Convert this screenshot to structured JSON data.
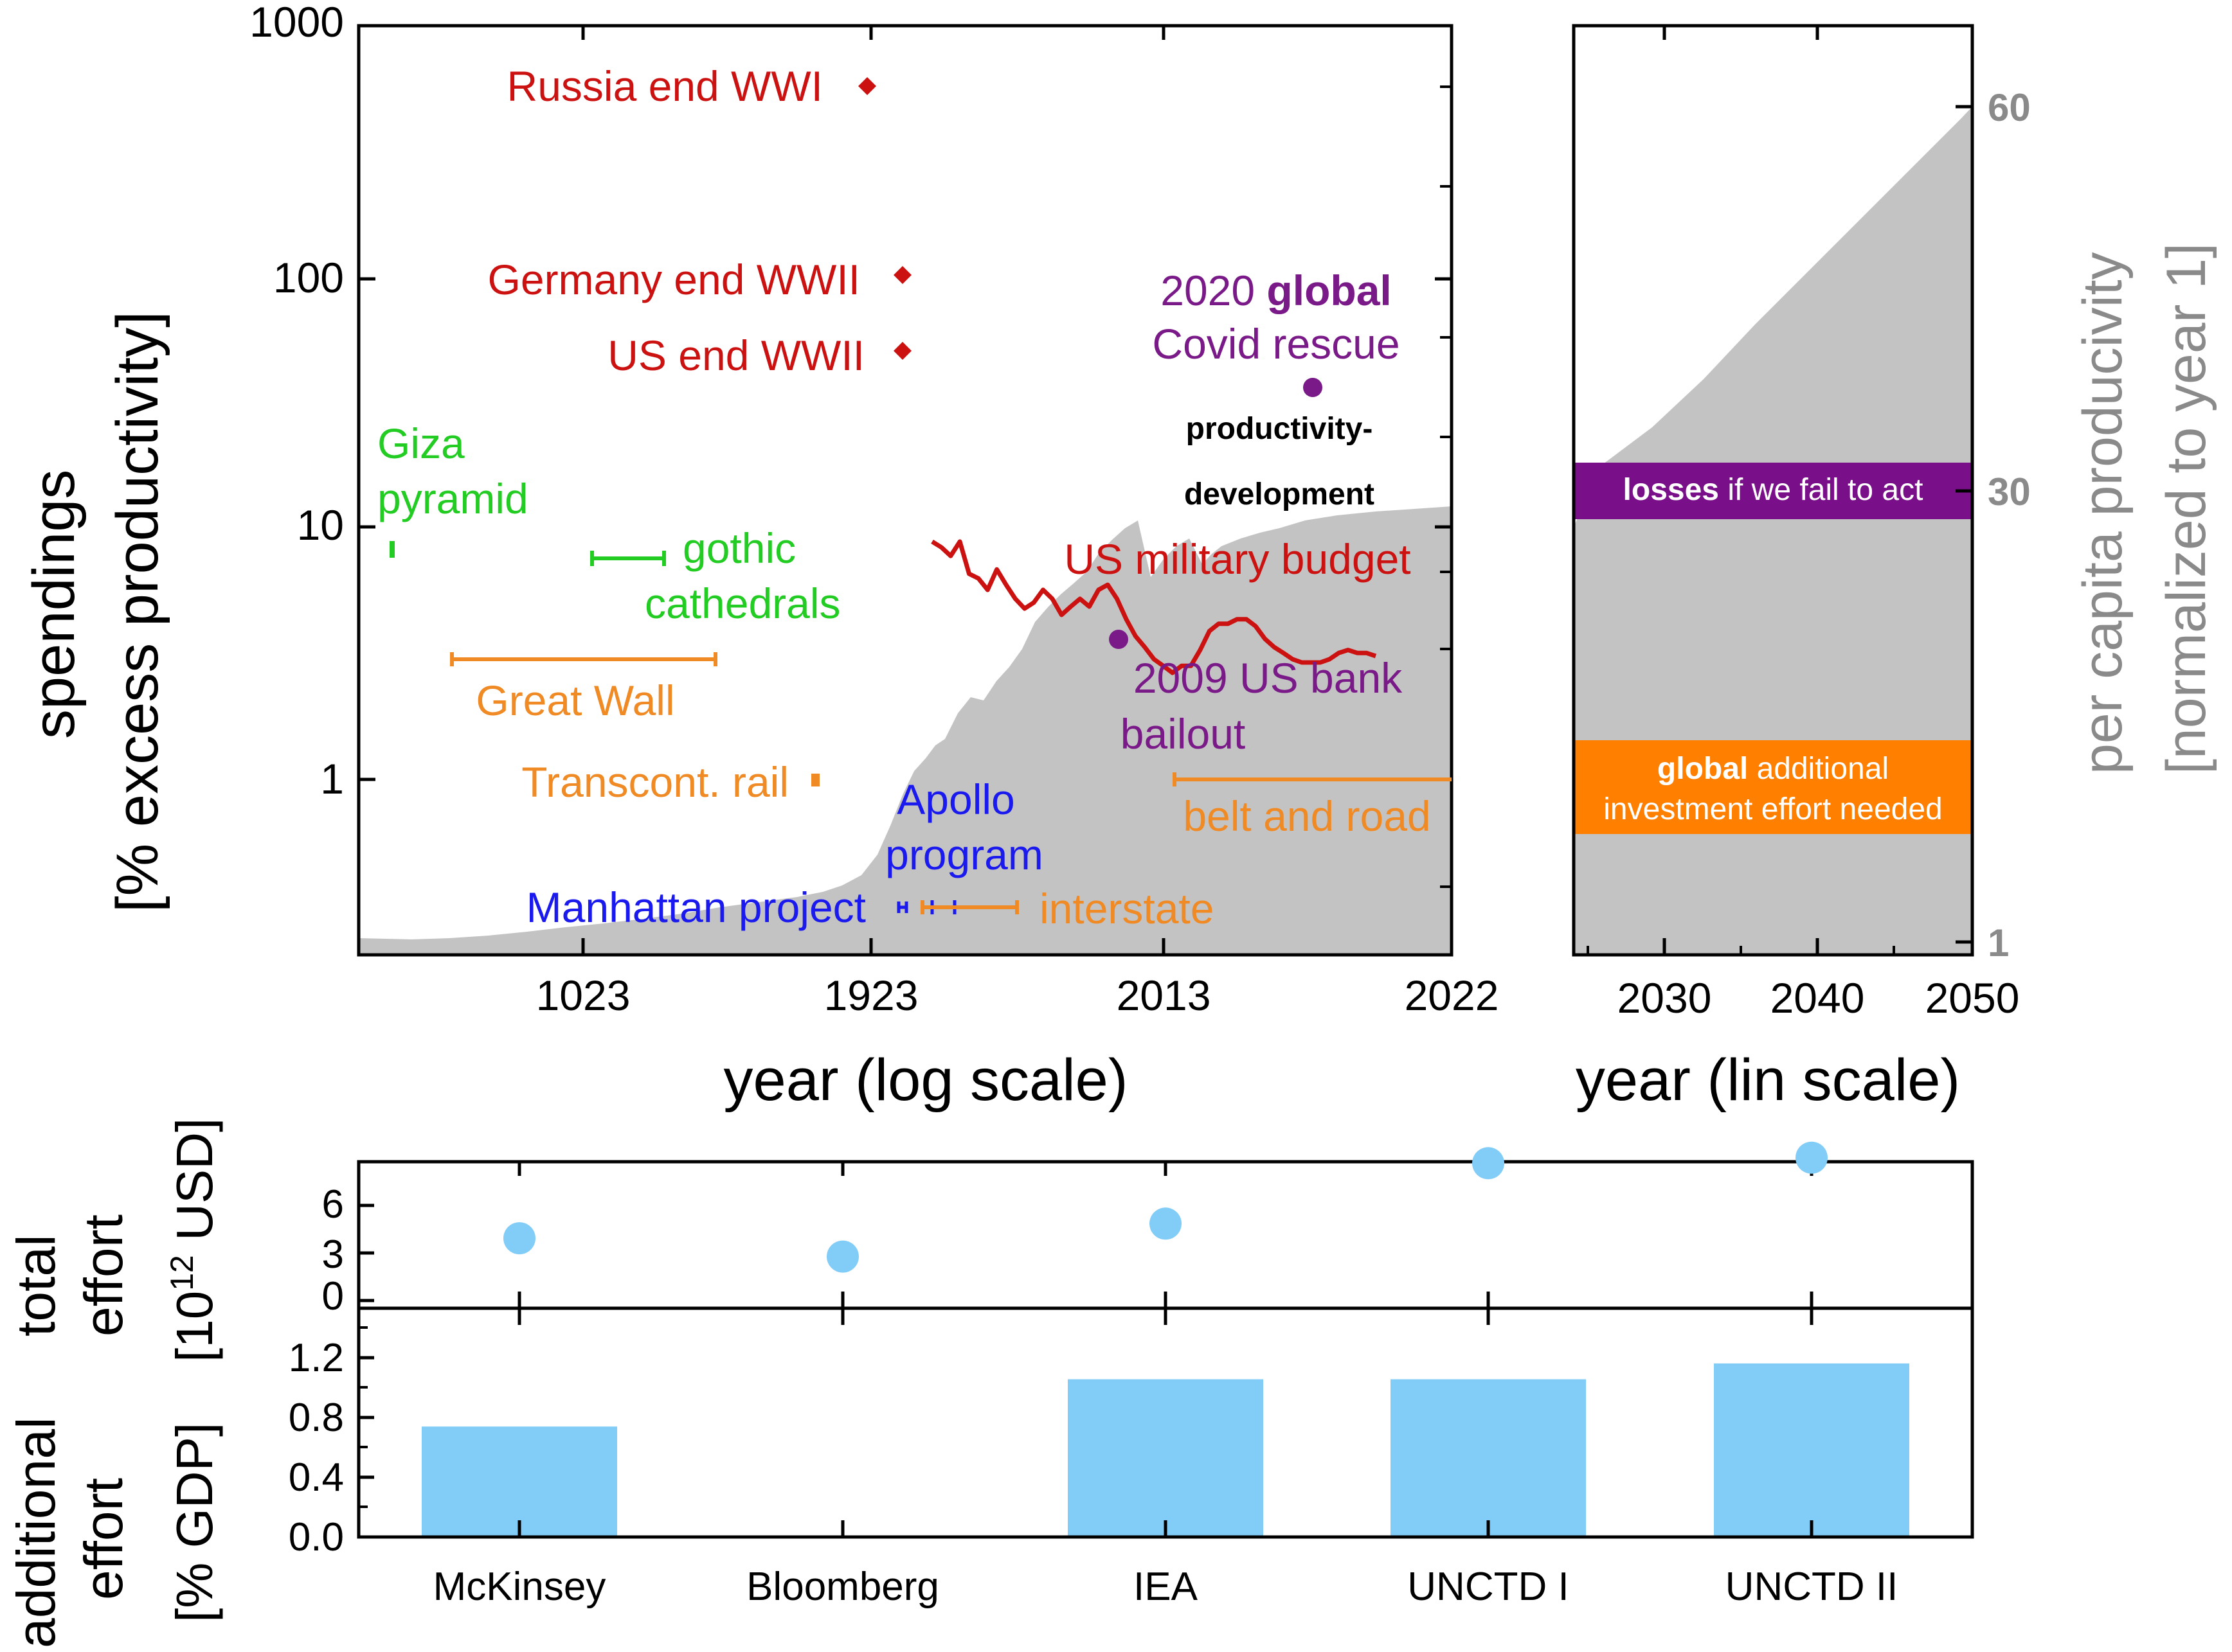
{
  "colors": {
    "war": "#cc1111",
    "green": "#22cc22",
    "orange": "#f08a24",
    "blue": "#1a1aee",
    "purple": "#7a1a88",
    "gray_area": "#c3c3c3",
    "gray_text": "#8a8a8a",
    "sky": "#82cdf7",
    "purple_band": "#7a0f8a",
    "orange_band": "#ff8000"
  },
  "chart_data": [
    {
      "id": "historic",
      "type": "scatter",
      "xlabel": "year (log scale)",
      "ylabel_line1": "spendings",
      "ylabel_line2": "[% excess productivity]",
      "yscale": "log",
      "ylim": [
        0.25,
        1000
      ],
      "yticks": [
        {
          "value": 1000,
          "label": "1000"
        },
        {
          "value": 100,
          "label": "100"
        },
        {
          "value": 10,
          "label": "10"
        },
        {
          "value": 1,
          "label": "1"
        }
      ],
      "xticks": [
        "1023",
        "1923",
        "2013",
        "2022"
      ],
      "points": [
        {
          "label": "Russia end WWI",
          "year": 1917,
          "value": 580,
          "color_key": "war",
          "marker": "diamond"
        },
        {
          "label": "Germany end WWII",
          "year": 1945,
          "value": 100,
          "color_key": "war",
          "marker": "diamond"
        },
        {
          "label": "US end WWII",
          "year": 1945,
          "value": 50,
          "color_key": "war",
          "marker": "diamond"
        },
        {
          "label_part1": "2020 ",
          "label_bold": "global",
          "label_line2": "Covid rescue",
          "year": 2020,
          "value": 36,
          "color_key": "purple",
          "marker": "circle"
        },
        {
          "label_line1": "2009 US bank",
          "label_line2": "bailout",
          "year": 2009,
          "value": 3.6,
          "color_key": "purple",
          "marker": "circle"
        }
      ],
      "ranges": [
        {
          "label_line1": "Giza",
          "label_line2": "pyramid",
          "value": 8.2,
          "color_key": "green"
        },
        {
          "label_line1": "gothic",
          "label_line2": "cathedrals",
          "value": 7.6,
          "color_key": "green"
        },
        {
          "label": "Great Wall",
          "value": 3.0,
          "color_key": "orange"
        },
        {
          "label": "Transcont. rail",
          "value": 1.0,
          "color_key": "orange"
        },
        {
          "label_line1": "Apollo",
          "label_line2": "program",
          "value": 0.33,
          "color_key": "blue"
        },
        {
          "label": "Manhattan project",
          "value": 0.33,
          "color_key": "blue"
        },
        {
          "label": "interstate",
          "value": 0.33,
          "color_key": "orange"
        },
        {
          "label": "belt and road",
          "value": 1.0,
          "color_key": "orange"
        }
      ],
      "military": {
        "label": "US military budget",
        "values": [
          10,
          9.5,
          8.8,
          10,
          7.5,
          7.2,
          6.5,
          7.8,
          6.8,
          6.0,
          5.5,
          5.8,
          6.5,
          6.0,
          5.2,
          5.6,
          6.0,
          5.6,
          6.5,
          6.8,
          6.0,
          5.0,
          4.3,
          3.9,
          3.5,
          3.3,
          3.1,
          3.3,
          3.3,
          3.8,
          4.5,
          4.8,
          4.8,
          5.0,
          5.0,
          4.7,
          4.2,
          3.9,
          3.7,
          3.5,
          3.4,
          3.4,
          3.4,
          3.5,
          3.7,
          3.8,
          3.7,
          3.7,
          3.6
        ]
      },
      "productivity_label_line1": "productivity-",
      "productivity_label_line2": "development"
    },
    {
      "id": "projection",
      "type": "area",
      "xlabel": "year (lin scale)",
      "ylabel_line1": "per capita producivity",
      "ylabel_line2": "[normalized to year 1]",
      "x": [
        2025,
        2030,
        2040,
        2050
      ],
      "xlim": [
        2024,
        2050
      ],
      "xticks": [
        "2030",
        "2040",
        "2050"
      ],
      "right_ticks": [
        "60",
        "30",
        "1"
      ],
      "bands": [
        {
          "bold": "losses",
          "text": " if we fail to act",
          "color_key": "purple_band"
        },
        {
          "bold": "global",
          "text": " additional",
          "line2": "investment effort needed",
          "color_key": "orange_band"
        }
      ]
    },
    {
      "id": "total",
      "type": "scatter",
      "ylabel_line1": "total",
      "ylabel_line2": "effort",
      "ylabel_line3_pre": "[10",
      "ylabel_line3_sup": "12",
      "ylabel_line3_post": " USD]",
      "ylim": [
        0,
        8
      ],
      "yticks": [
        "0",
        "3",
        "6"
      ],
      "categories": [
        "McKinsey",
        "Bloomberg",
        "IEA",
        "UNCTD I",
        "UNCTD II"
      ],
      "values": [
        3.4,
        2.4,
        4.2,
        7.5,
        7.8
      ]
    },
    {
      "id": "additional",
      "type": "bar",
      "ylabel_line1": "additional",
      "ylabel_line2": "effort",
      "ylabel_line3": "[% GDP]",
      "ylim": [
        0,
        1.45
      ],
      "yticks": [
        "0.0",
        "0.4",
        "0.8",
        "1.2"
      ],
      "categories": [
        "McKinsey",
        "Bloomberg",
        "IEA",
        "UNCTD I",
        "UNCTD II"
      ],
      "values": [
        0.7,
        null,
        1.0,
        1.0,
        1.1
      ]
    }
  ]
}
